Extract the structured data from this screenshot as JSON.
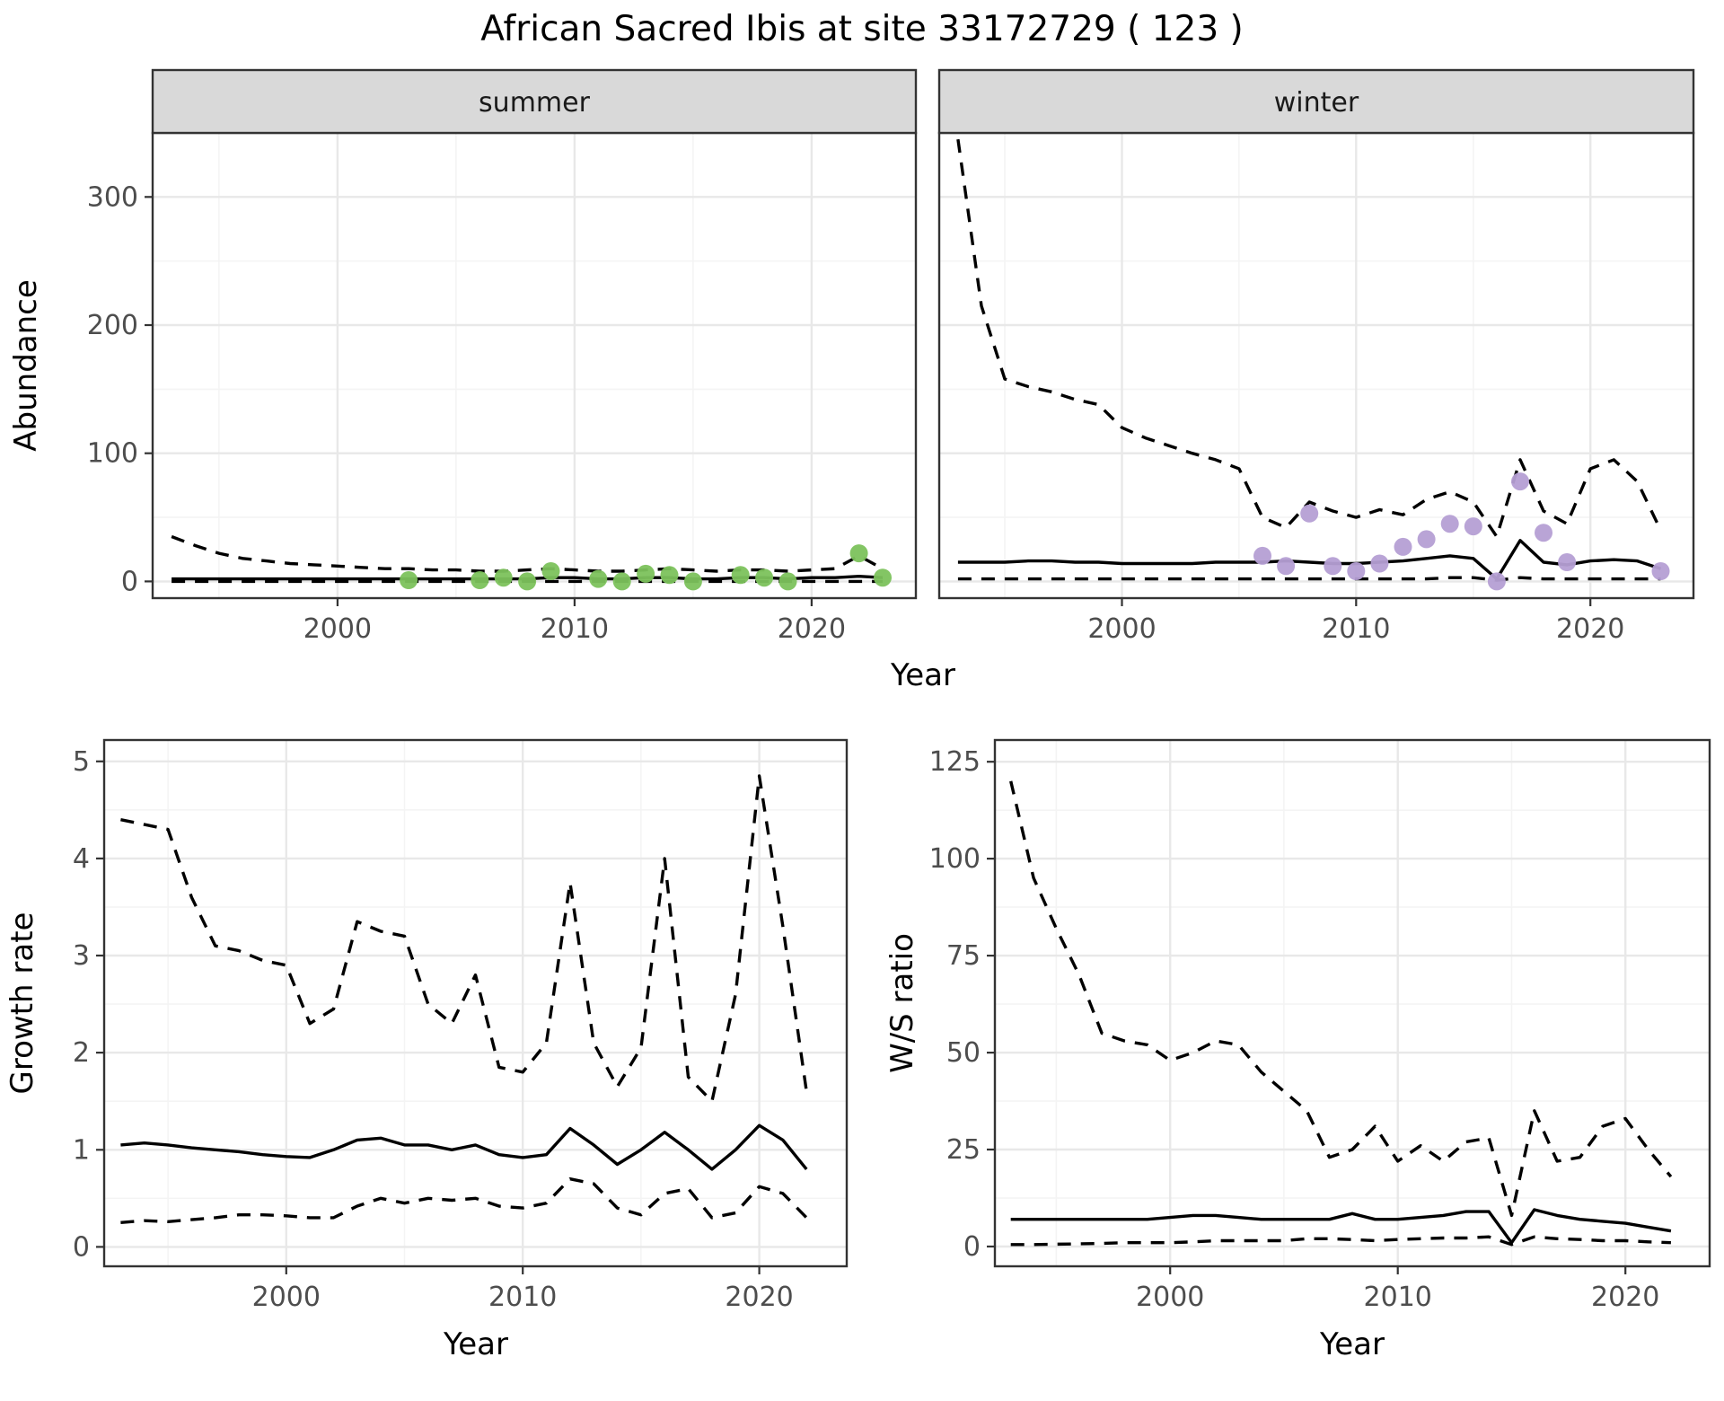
{
  "title": "African Sacred Ibis at site 33172729 ( 123 )",
  "theme": {
    "background": "#ffffff",
    "panel_border": "#333333",
    "grid_major": "#e8e8e8",
    "grid_minor": "#f4f4f4",
    "strip_fill": "#d9d9d9",
    "strip_text": "#1a1a1a",
    "tick_label_color": "#4d4d4d",
    "axis_title_color": "#000000",
    "line_color": "#000000",
    "summer_point_color": "#7cc25c",
    "winter_point_color": "#b59fd4"
  },
  "chart_data": [
    {
      "id": "abundance-summer",
      "type": "line",
      "facet": "summer",
      "xlabel": "Year",
      "ylabel": "Abundance",
      "xlim": [
        1992.2,
        2024.4
      ],
      "ylim": [
        -13,
        350
      ],
      "xticks": [
        2000,
        2010,
        2020
      ],
      "yticks": [
        0,
        100,
        200,
        300
      ],
      "series": [
        {
          "name": "upper-ci",
          "style": "dashed",
          "x": [
            1993,
            1994,
            1995,
            1996,
            1997,
            1998,
            1999,
            2000,
            2001,
            2002,
            2003,
            2004,
            2005,
            2006,
            2007,
            2008,
            2009,
            2010,
            2011,
            2012,
            2013,
            2014,
            2015,
            2016,
            2017,
            2018,
            2019,
            2020,
            2021,
            2022,
            2023
          ],
          "y": [
            35,
            28,
            22,
            18,
            16,
            14,
            13,
            12,
            11,
            10,
            10,
            9,
            9,
            8,
            8,
            9,
            10,
            9,
            8,
            8,
            9,
            10,
            9,
            8,
            9,
            9,
            8,
            9,
            10,
            20,
            10
          ]
        },
        {
          "name": "median",
          "style": "solid",
          "x": [
            1993,
            1994,
            1995,
            1996,
            1997,
            1998,
            1999,
            2000,
            2001,
            2002,
            2003,
            2004,
            2005,
            2006,
            2007,
            2008,
            2009,
            2010,
            2011,
            2012,
            2013,
            2014,
            2015,
            2016,
            2017,
            2018,
            2019,
            2020,
            2021,
            2022,
            2023
          ],
          "y": [
            2,
            2,
            2,
            2,
            2,
            2,
            2,
            2,
            2,
            2,
            2,
            2,
            2,
            2,
            2,
            2,
            3,
            3,
            2,
            2,
            3,
            3,
            2,
            2,
            3,
            3,
            2,
            3,
            3,
            4,
            3
          ]
        },
        {
          "name": "lower-ci",
          "style": "dashed",
          "x": [
            1993,
            1994,
            1995,
            1996,
            1997,
            1998,
            1999,
            2000,
            2001,
            2002,
            2003,
            2004,
            2005,
            2006,
            2007,
            2008,
            2009,
            2010,
            2011,
            2012,
            2013,
            2014,
            2015,
            2016,
            2017,
            2018,
            2019,
            2020,
            2021,
            2022,
            2023
          ],
          "y": [
            0,
            0,
            0,
            0,
            0,
            0,
            0,
            0,
            0,
            0,
            0,
            0,
            0,
            0,
            0,
            0,
            0,
            0,
            0,
            0,
            0,
            0,
            0,
            0,
            0,
            0,
            0,
            0,
            0,
            0,
            0
          ]
        },
        {
          "name": "observed",
          "style": "points",
          "color": "#7cc25c",
          "x": [
            2003,
            2006,
            2007,
            2008,
            2009,
            2011,
            2012,
            2013,
            2014,
            2015,
            2017,
            2018,
            2019,
            2022,
            2023
          ],
          "y": [
            1,
            1,
            3,
            0,
            8,
            2,
            0,
            6,
            5,
            0,
            5,
            3,
            0,
            22,
            3
          ]
        }
      ]
    },
    {
      "id": "abundance-winter",
      "type": "line",
      "facet": "winter",
      "xlabel": "Year",
      "ylabel": "Abundance",
      "xlim": [
        1992.2,
        2024.4
      ],
      "ylim": [
        -13,
        350
      ],
      "xticks": [
        2000,
        2010,
        2020
      ],
      "yticks": [
        0,
        100,
        200,
        300
      ],
      "series": [
        {
          "name": "upper-ci",
          "style": "dashed",
          "x": [
            1993,
            1994,
            1995,
            1996,
            1997,
            1998,
            1999,
            2000,
            2001,
            2002,
            2003,
            2004,
            2005,
            2006,
            2007,
            2008,
            2009,
            2010,
            2011,
            2012,
            2013,
            2014,
            2015,
            2016,
            2017,
            2018,
            2019,
            2020,
            2021,
            2022,
            2023
          ],
          "y": [
            345,
            215,
            158,
            152,
            148,
            142,
            138,
            120,
            112,
            106,
            100,
            95,
            88,
            50,
            42,
            62,
            55,
            50,
            56,
            52,
            64,
            70,
            62,
            35,
            95,
            55,
            45,
            88,
            95,
            78,
            40
          ]
        },
        {
          "name": "median",
          "style": "solid",
          "x": [
            1993,
            1994,
            1995,
            1996,
            1997,
            1998,
            1999,
            2000,
            2001,
            2002,
            2003,
            2004,
            2005,
            2006,
            2007,
            2008,
            2009,
            2010,
            2011,
            2012,
            2013,
            2014,
            2015,
            2016,
            2017,
            2018,
            2019,
            2020,
            2021,
            2022,
            2023
          ],
          "y": [
            15,
            15,
            15,
            16,
            16,
            15,
            15,
            14,
            14,
            14,
            14,
            15,
            15,
            15,
            16,
            15,
            14,
            14,
            15,
            16,
            18,
            20,
            18,
            2,
            32,
            15,
            13,
            16,
            17,
            16,
            10
          ]
        },
        {
          "name": "lower-ci",
          "style": "dashed",
          "x": [
            1993,
            1994,
            1995,
            1996,
            1997,
            1998,
            1999,
            2000,
            2001,
            2002,
            2003,
            2004,
            2005,
            2006,
            2007,
            2008,
            2009,
            2010,
            2011,
            2012,
            2013,
            2014,
            2015,
            2016,
            2017,
            2018,
            2019,
            2020,
            2021,
            2022,
            2023
          ],
          "y": [
            2,
            2,
            2,
            2,
            2,
            2,
            2,
            2,
            2,
            2,
            2,
            2,
            2,
            2,
            2,
            2,
            2,
            2,
            2,
            2,
            2,
            3,
            3,
            1,
            3,
            2,
            2,
            2,
            2,
            2,
            2
          ]
        },
        {
          "name": "observed",
          "style": "points",
          "color": "#b59fd4",
          "x": [
            2006,
            2007,
            2008,
            2009,
            2010,
            2011,
            2012,
            2013,
            2014,
            2015,
            2016,
            2017,
            2018,
            2019,
            2023
          ],
          "y": [
            20,
            12,
            53,
            12,
            8,
            14,
            27,
            33,
            45,
            43,
            0,
            78,
            38,
            15,
            8
          ]
        }
      ]
    },
    {
      "id": "growth-rate",
      "type": "line",
      "xlabel": "Year",
      "ylabel": "Growth rate",
      "xlim": [
        1992.3,
        2023.7
      ],
      "ylim": [
        -0.2,
        5.22
      ],
      "xticks": [
        2000,
        2010,
        2020
      ],
      "yticks": [
        0,
        1,
        2,
        3,
        4,
        5
      ],
      "series": [
        {
          "name": "upper-ci",
          "style": "dashed",
          "x": [
            1993,
            1994,
            1995,
            1996,
            1997,
            1998,
            1999,
            2000,
            2001,
            2002,
            2003,
            2004,
            2005,
            2006,
            2007,
            2008,
            2009,
            2010,
            2011,
            2012,
            2013,
            2014,
            2015,
            2016,
            2017,
            2018,
            2019,
            2020,
            2021,
            2022
          ],
          "y": [
            4.4,
            4.35,
            4.3,
            3.6,
            3.1,
            3.05,
            2.95,
            2.9,
            2.3,
            2.45,
            3.35,
            3.25,
            3.2,
            2.5,
            2.3,
            2.8,
            1.85,
            1.8,
            2.1,
            3.75,
            2.1,
            1.65,
            2.05,
            4.0,
            1.75,
            1.5,
            2.6,
            4.85,
            3.3,
            1.6
          ]
        },
        {
          "name": "median",
          "style": "solid",
          "x": [
            1993,
            1994,
            1995,
            1996,
            1997,
            1998,
            1999,
            2000,
            2001,
            2002,
            2003,
            2004,
            2005,
            2006,
            2007,
            2008,
            2009,
            2010,
            2011,
            2012,
            2013,
            2014,
            2015,
            2016,
            2017,
            2018,
            2019,
            2020,
            2021,
            2022
          ],
          "y": [
            1.05,
            1.07,
            1.05,
            1.02,
            1.0,
            0.98,
            0.95,
            0.93,
            0.92,
            1.0,
            1.1,
            1.12,
            1.05,
            1.05,
            1.0,
            1.05,
            0.95,
            0.92,
            0.95,
            1.22,
            1.05,
            0.85,
            1.0,
            1.18,
            1.0,
            0.8,
            1.0,
            1.25,
            1.1,
            0.8
          ]
        },
        {
          "name": "lower-ci",
          "style": "dashed",
          "x": [
            1993,
            1994,
            1995,
            1996,
            1997,
            1998,
            1999,
            2000,
            2001,
            2002,
            2003,
            2004,
            2005,
            2006,
            2007,
            2008,
            2009,
            2010,
            2011,
            2012,
            2013,
            2014,
            2015,
            2016,
            2017,
            2018,
            2019,
            2020,
            2021,
            2022
          ],
          "y": [
            0.25,
            0.27,
            0.26,
            0.28,
            0.3,
            0.33,
            0.33,
            0.32,
            0.3,
            0.3,
            0.42,
            0.5,
            0.45,
            0.5,
            0.48,
            0.5,
            0.42,
            0.4,
            0.45,
            0.7,
            0.65,
            0.4,
            0.33,
            0.55,
            0.6,
            0.3,
            0.35,
            0.62,
            0.55,
            0.3
          ]
        }
      ]
    },
    {
      "id": "ws-ratio",
      "type": "line",
      "xlabel": "Year",
      "ylabel": "W/S ratio",
      "xlim": [
        1992.3,
        2023.7
      ],
      "ylim": [
        -5.1,
        130.6
      ],
      "xticks": [
        2000,
        2010,
        2020
      ],
      "yticks": [
        0,
        25,
        50,
        75,
        100,
        125
      ],
      "series": [
        {
          "name": "upper-ci",
          "style": "dashed",
          "x": [
            1993,
            1994,
            1995,
            1996,
            1997,
            1998,
            1999,
            2000,
            2001,
            2002,
            2003,
            2004,
            2005,
            2006,
            2007,
            2008,
            2009,
            2010,
            2011,
            2012,
            2013,
            2014,
            2015,
            2016,
            2017,
            2018,
            2019,
            2020,
            2021,
            2022
          ],
          "y": [
            120,
            95,
            82,
            70,
            55,
            53,
            52,
            48,
            50,
            53,
            52,
            45,
            40,
            35,
            23,
            25,
            31,
            22,
            26,
            22,
            27,
            28,
            8,
            35,
            22,
            23,
            31,
            33,
            25,
            18
          ]
        },
        {
          "name": "median",
          "style": "solid",
          "x": [
            1993,
            1994,
            1995,
            1996,
            1997,
            1998,
            1999,
            2000,
            2001,
            2002,
            2003,
            2004,
            2005,
            2006,
            2007,
            2008,
            2009,
            2010,
            2011,
            2012,
            2013,
            2014,
            2015,
            2016,
            2017,
            2018,
            2019,
            2020,
            2021,
            2022
          ],
          "y": [
            7,
            7,
            7,
            7,
            7,
            7,
            7,
            7.5,
            8,
            8,
            7.5,
            7,
            7,
            7,
            7,
            8.5,
            7,
            7,
            7.5,
            8,
            9,
            9,
            1,
            9.5,
            8,
            7,
            6.5,
            6,
            5,
            4
          ]
        },
        {
          "name": "lower-ci",
          "style": "dashed",
          "x": [
            1993,
            1994,
            1995,
            1996,
            1997,
            1998,
            1999,
            2000,
            2001,
            2002,
            2003,
            2004,
            2005,
            2006,
            2007,
            2008,
            2009,
            2010,
            2011,
            2012,
            2013,
            2014,
            2015,
            2016,
            2017,
            2018,
            2019,
            2020,
            2021,
            2022
          ],
          "y": [
            0.5,
            0.5,
            0.6,
            0.7,
            0.8,
            1,
            1,
            1,
            1.2,
            1.5,
            1.5,
            1.5,
            1.5,
            2,
            2,
            1.8,
            1.5,
            1.8,
            2,
            2.2,
            2.2,
            2.5,
            0.5,
            2.5,
            2,
            1.8,
            1.5,
            1.5,
            1.2,
            1
          ]
        }
      ]
    }
  ]
}
